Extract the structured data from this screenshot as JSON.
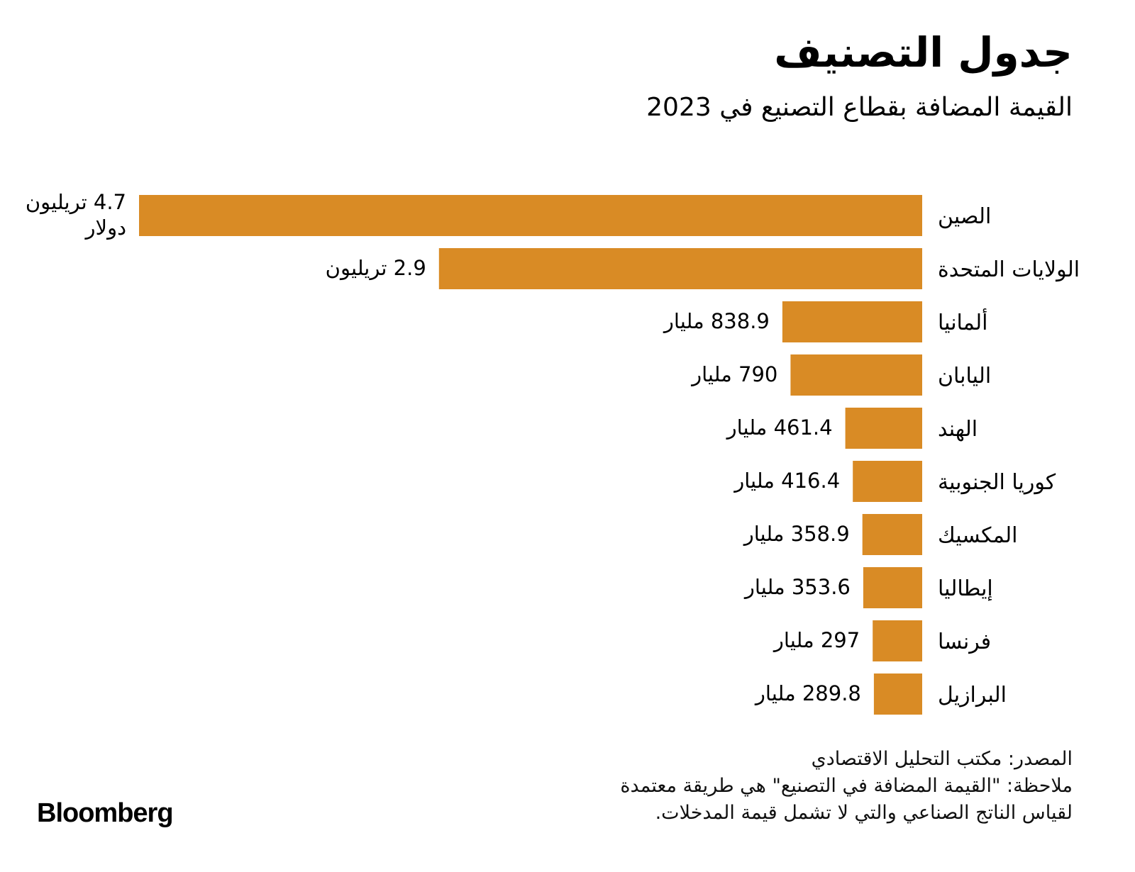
{
  "chart_data": {
    "type": "bar",
    "orientation": "horizontal",
    "title": "جدول التصنيف",
    "subtitle": "القيمة المضافة بقطاع التصنيع في 2023",
    "categories": [
      "الصين",
      "الولايات المتحدة",
      "ألمانيا",
      "اليابان",
      "الهند",
      "كوريا الجنوبية",
      "المكسيك",
      "إيطاليا",
      "فرنسا",
      "البرازيل"
    ],
    "values": [
      4700,
      2900,
      838.9,
      790,
      461.4,
      416.4,
      358.9,
      353.6,
      297,
      289.8
    ],
    "value_unit": "billion USD",
    "data_labels": [
      [
        "4.7 تريليون",
        "دولار"
      ],
      [
        "2.9 تريليون"
      ],
      [
        "838.9 مليار"
      ],
      [
        "790 مليار"
      ],
      [
        "461.4 مليار"
      ],
      [
        "416.4 مليار"
      ],
      [
        "358.9 مليار"
      ],
      [
        "353.6 مليار"
      ],
      [
        "297 مليار"
      ],
      [
        "289.8 مليار"
      ]
    ],
    "xlim": [
      0,
      4700
    ],
    "grid": false,
    "legend": "none",
    "bar_color": "#D98B25"
  },
  "source": "المصدر: مكتب التحليل الاقتصادي",
  "note_line1": "ملاحظة: \"القيمة المضافة في التصنيع\" هي طريقة معتمدة",
  "note_line2": "لقياس الناتج الصناعي والتي لا تشمل قيمة المدخلات.",
  "logo": "Bloomberg"
}
